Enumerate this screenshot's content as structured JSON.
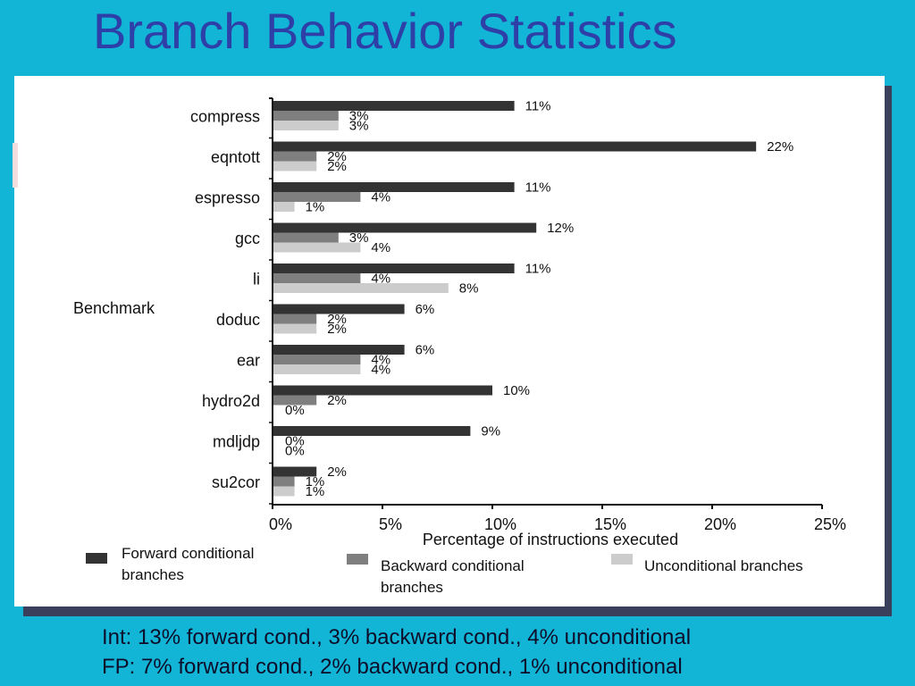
{
  "slide": {
    "title": "Branch Behavior Statistics",
    "summary_lines": [
      "Int: 13% forward cond., 3% backward cond., 4% unconditional",
      "FP: 7% forward cond., 2% backward cond., 1% unconditional"
    ]
  },
  "chart_data": {
    "type": "bar",
    "orientation": "horizontal",
    "categories": [
      "compress",
      "eqntott",
      "espresso",
      "gcc",
      "li",
      "doduc",
      "ear",
      "hydro2d",
      "mdljdp",
      "su2cor"
    ],
    "series": [
      {
        "name": "Forward conditional branches",
        "color": "#333333",
        "values": [
          11,
          22,
          11,
          12,
          11,
          6,
          6,
          10,
          9,
          2
        ]
      },
      {
        "name": "Backward conditional branches",
        "color": "#7f7f7f",
        "values": [
          3,
          2,
          4,
          3,
          4,
          2,
          4,
          2,
          0,
          1
        ]
      },
      {
        "name": "Unconditional branches",
        "color": "#cccccc",
        "values": [
          3,
          2,
          1,
          4,
          8,
          2,
          4,
          0,
          0,
          1
        ]
      }
    ],
    "xlabel": "Percentage of instructions executed",
    "ylabel": "Benchmark",
    "xlim": [
      0,
      25
    ],
    "xticks": [
      "0%",
      "5%",
      "10%",
      "15%",
      "20%",
      "25%"
    ],
    "value_suffix": "%",
    "legend_position": "bottom"
  }
}
